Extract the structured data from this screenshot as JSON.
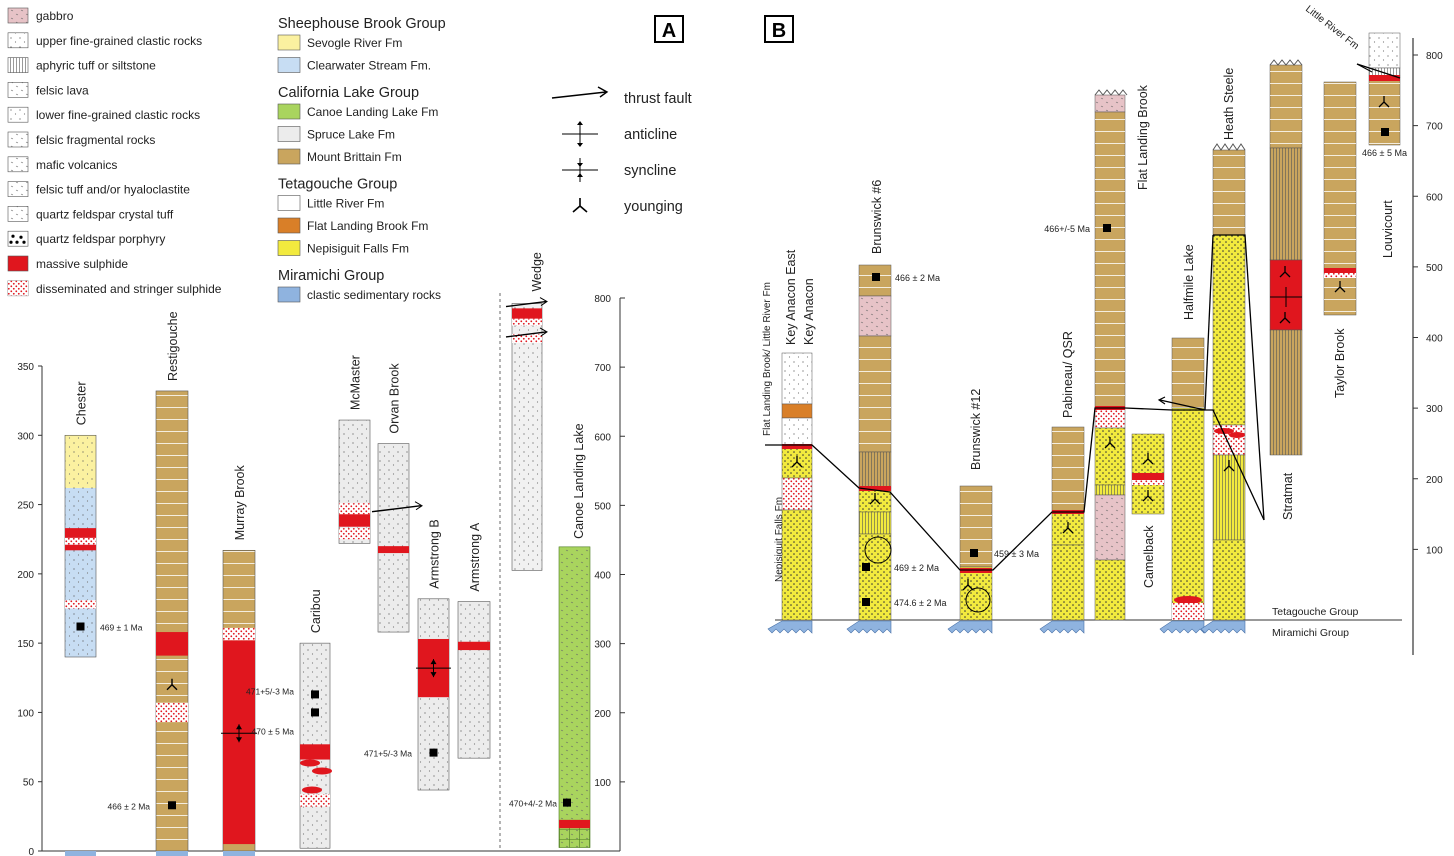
{
  "panels": {
    "a": "A",
    "b": "B"
  },
  "legend_lithology": [
    {
      "label": "gabbro",
      "pattern": "gab"
    },
    {
      "label": "upper fine-grained clastic rocks",
      "pattern": "fine"
    },
    {
      "label": "aphyric tuff or siltstone",
      "pattern": "vert"
    },
    {
      "label": "felsic lava",
      "pattern": "flava"
    },
    {
      "label": "lower fine-grained clastic rocks",
      "pattern": "lfine"
    },
    {
      "label": "felsic fragmental rocks",
      "pattern": "frag"
    },
    {
      "label": "mafic volcanics",
      "pattern": "mafic"
    },
    {
      "label": "felsic tuff and/or hyaloclastite",
      "pattern": "ftuff"
    },
    {
      "label": "quartz feldspar crystal tuff",
      "pattern": "qfct"
    },
    {
      "label": "quartz feldspar porphyry",
      "pattern": "qfp"
    },
    {
      "label": "massive sulphide",
      "pattern": "ms"
    },
    {
      "label": "disseminated and stringer sulphide",
      "pattern": "diss"
    }
  ],
  "legend_groups": [
    {
      "type": "head",
      "label": "Sheephouse Brook Group"
    },
    {
      "type": "item",
      "label": "Sevogle River Fm",
      "color": "#fbf1a0"
    },
    {
      "type": "item",
      "label": "Clearwater Stream Fm.",
      "color": "#c7ddf3"
    },
    {
      "type": "head",
      "label": "California Lake Group"
    },
    {
      "type": "item",
      "label": "Canoe Landing Lake Fm",
      "color": "#a9d45e"
    },
    {
      "type": "item",
      "label": "Spruce Lake Fm",
      "color": "#ececec"
    },
    {
      "type": "item",
      "label": "Mount Brittain Fm",
      "color": "#c9a55e"
    },
    {
      "type": "head",
      "label": "Tetagouche Group"
    },
    {
      "type": "item",
      "label": "Little River Fm",
      "color": "#ffffff"
    },
    {
      "type": "item",
      "label": "Flat Landing Brook Fm",
      "color": "#d97f28"
    },
    {
      "type": "item",
      "label": "Nepisiguit Falls Fm",
      "color": "#f2ea3e"
    },
    {
      "type": "head",
      "label": "Miramichi Group"
    },
    {
      "type": "item",
      "label": "clastic sedimentary rocks",
      "color": "#8fb3df"
    }
  ],
  "legend_symbols": [
    {
      "label": "thrust fault",
      "symbol": "thrust"
    },
    {
      "label": "anticline",
      "symbol": "anticline"
    },
    {
      "label": "syncline",
      "symbol": "syncline"
    },
    {
      "label": "younging",
      "symbol": "younging"
    }
  ],
  "colors": {
    "spruce": "#ececec",
    "brittain": "#c9a55e",
    "clearwater": "#c7ddf3",
    "sevogle": "#fbf1a0",
    "canoe": "#a9d45e",
    "flb": "#d97f28",
    "nepisiguit": "#f2ea3e",
    "miramichi": "#8fb3df",
    "little_river": "#ffffff",
    "gabbro": "#e7c3c7",
    "massive_sulphide": "#e0161e"
  },
  "panel_a": {
    "axis_left": {
      "min": 0,
      "max": 350,
      "ticks": [
        "0",
        "50",
        "100",
        "150",
        "200",
        "250",
        "300",
        "350"
      ]
    },
    "axis_right": {
      "min": 0,
      "max": 800,
      "ticks": [
        "100",
        "200",
        "300",
        "400",
        "500",
        "600",
        "700",
        "800"
      ]
    },
    "columns": [
      {
        "name": "Chester",
        "base": 140,
        "label_top": 300,
        "units": [
          [
            140,
            262,
            "clearwater"
          ],
          [
            262,
            300,
            "sevogle"
          ]
        ],
        "sulphide": [
          [
            217,
            221
          ],
          [
            226,
            233
          ]
        ],
        "diss": [
          [
            175,
            181
          ],
          [
            221,
            226
          ]
        ],
        "samples": [
          [
            162,
            "469 ± 1 Ma"
          ]
        ],
        "basement": true
      },
      {
        "name": "Restigouche",
        "base": 0,
        "label_top": 332,
        "units": [
          [
            0,
            332,
            "brittain"
          ]
        ],
        "sulphide": [
          [
            141,
            158
          ]
        ],
        "diss": [
          [
            93,
            107
          ]
        ],
        "samples": [
          [
            33,
            "466 ± 2 Ma"
          ]
        ],
        "younging": [
          120
        ],
        "basement": true
      },
      {
        "name": "Murray Brook",
        "base": 0,
        "label_top": 217,
        "units": [
          [
            0,
            217,
            "brittain"
          ]
        ],
        "sulphide": [
          [
            5,
            152
          ]
        ],
        "diss": [
          [
            152,
            161
          ]
        ],
        "anticline": [
          85
        ],
        "basement": true
      },
      {
        "name": "Caribou",
        "base": 2,
        "label_top": 150,
        "units": [
          [
            2,
            150,
            "spruce"
          ]
        ],
        "sulphide": [
          [
            66,
            77
          ]
        ],
        "diss": [
          [
            32,
            41
          ]
        ],
        "samples": [
          [
            113,
            "471+5/-3 Ma"
          ],
          [
            100,
            "470 ± 5 Ma"
          ]
        ]
      },
      {
        "name": "McMaster",
        "base": 222,
        "label_top": 311,
        "units": [
          [
            222,
            311,
            "spruce"
          ]
        ],
        "sulphide": [
          [
            234,
            243
          ]
        ],
        "diss": [
          [
            225,
            233
          ],
          [
            243,
            251
          ]
        ]
      },
      {
        "name": "Orvan Brook",
        "base": 158,
        "label_top": 294,
        "units": [
          [
            158,
            294,
            "spruce"
          ]
        ],
        "sulphide": [
          [
            215,
            220
          ]
        ],
        "thrust": [
          247
        ]
      },
      {
        "name": "Armstrong B",
        "base": 44,
        "label_top": 182,
        "units": [
          [
            44,
            182,
            "spruce"
          ]
        ],
        "sulphide": [
          [
            111,
            153
          ]
        ],
        "samples": [
          [
            71,
            "471+5/-3 Ma"
          ]
        ],
        "syncline": [
          132
        ]
      },
      {
        "name": "Armstrong A",
        "base": 67,
        "label_top": 180,
        "units": [
          [
            67,
            180,
            "spruce"
          ]
        ],
        "sulphide": [
          [
            145,
            151
          ]
        ]
      }
    ],
    "wedge": {
      "name": "Wedge",
      "base": 406,
      "top": 792
    },
    "canoe": {
      "name": "Canoe Landing Lake",
      "base": 5,
      "top": 440,
      "sample": [
        70,
        "470+4/-2 Ma"
      ]
    }
  },
  "panel_b": {
    "axis_ticks": [
      "100",
      "200",
      "300",
      "400",
      "500",
      "600",
      "700",
      "800"
    ],
    "group_labels": {
      "upper": "Tetagouche Group",
      "lower": "Miramichi Group"
    },
    "side_label_1": "Flat Landing Brook/ Little River Fm",
    "side_label_2": "Nepisiguit Falls Fm",
    "columns": [
      {
        "name": "Key Anacon East",
        "name2": "Key Anacon",
        "x": 782
      },
      {
        "name": "Brunswick #6",
        "x": 860,
        "samples": [
          [
            277,
            "466 ± 2 Ma"
          ],
          [
            567,
            "469 ± 2 Ma"
          ],
          [
            602,
            "474.6 ± 2 Ma"
          ]
        ]
      },
      {
        "name": "Brunswick #12",
        "x": 960,
        "samples": [
          [
            553,
            "459 ± 3 Ma"
          ]
        ]
      },
      {
        "name": "Pabineau/ QSR",
        "x": 1052
      },
      {
        "name": "Flat Landing Brook",
        "x": 1095,
        "samples": [
          [
            228,
            "466+/-5 Ma"
          ]
        ]
      },
      {
        "name": "Camelback",
        "x": 1132
      },
      {
        "name": "Halfmile Lake",
        "x": 1172
      },
      {
        "name": "Heath Steele",
        "x": 1213
      },
      {
        "name": "Stratmat",
        "x": 1270
      },
      {
        "name": "Taylor Brook",
        "x": 1324
      },
      {
        "name": "Louvicourt",
        "x": 1368,
        "samples": [
          [
            152,
            "466 ± 5 Ma"
          ]
        ]
      }
    ],
    "little_river_label": "Little River Fm"
  }
}
